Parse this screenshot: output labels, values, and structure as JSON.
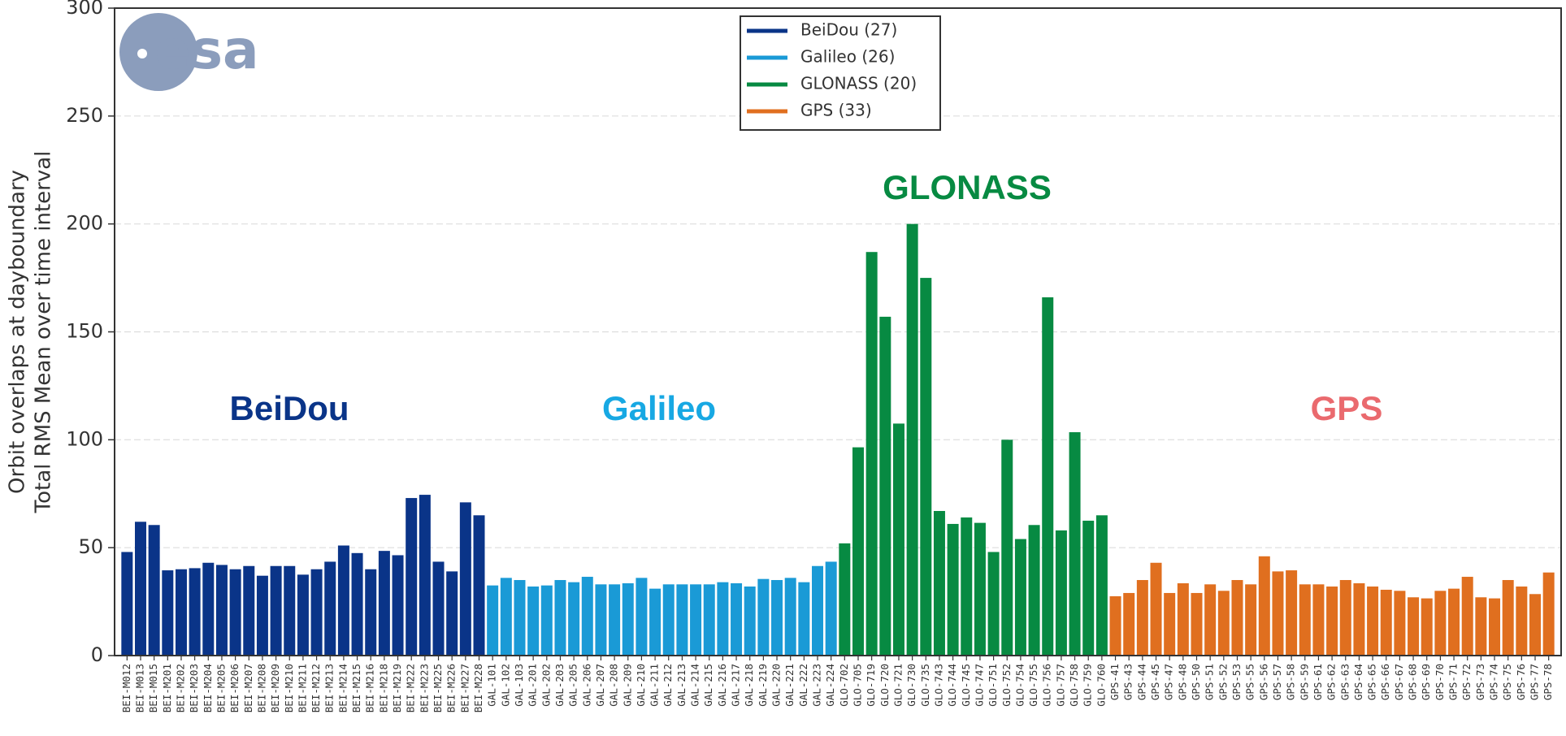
{
  "chart_data": {
    "type": "bar",
    "logo": "esa",
    "y_label": [
      "Orbit overlaps at dayboundary",
      "Total RMS Mean over time interval"
    ],
    "categories": [
      "BEI-M012",
      "BEI-M013",
      "BEI-M015",
      "BEI-M201",
      "BEI-M202",
      "BEI-M203",
      "BEI-M204",
      "BEI-M205",
      "BEI-M206",
      "BEI-M207",
      "BEI-M208",
      "BEI-M209",
      "BEI-M210",
      "BEI-M211",
      "BEI-M212",
      "BEI-M213",
      "BEI-M214",
      "BEI-M215",
      "BEI-M216",
      "BEI-M218",
      "BEI-M219",
      "BEI-M222",
      "BEI-M223",
      "BEI-M225",
      "BEI-M226",
      "BEI-M227",
      "BEI-M228",
      "GAL-101",
      "GAL-102",
      "GAL-103",
      "GAL-201",
      "GAL-202",
      "GAL-203",
      "GAL-205",
      "GAL-206",
      "GAL-207",
      "GAL-208",
      "GAL-209",
      "GAL-210",
      "GAL-211",
      "GAL-212",
      "GAL-213",
      "GAL-214",
      "GAL-215",
      "GAL-216",
      "GAL-217",
      "GAL-218",
      "GAL-219",
      "GAL-220",
      "GAL-221",
      "GAL-222",
      "GAL-223",
      "GAL-224",
      "GLO-702",
      "GLO-705",
      "GLO-719",
      "GLO-720",
      "GLO-721",
      "GLO-730",
      "GLO-735",
      "GLO-743",
      "GLO-744",
      "GLO-745",
      "GLO-747",
      "GLO-751",
      "GLO-752",
      "GLO-754",
      "GLO-755",
      "GLO-756",
      "GLO-757",
      "GLO-758",
      "GLO-759",
      "GLO-760",
      "GPS-41",
      "GPS-43",
      "GPS-44",
      "GPS-45",
      "GPS-47",
      "GPS-48",
      "GPS-50",
      "GPS-51",
      "GPS-52",
      "GPS-53",
      "GPS-55",
      "GPS-56",
      "GPS-57",
      "GPS-58",
      "GPS-59",
      "GPS-61",
      "GPS-62",
      "GPS-63",
      "GPS-64",
      "GPS-65",
      "GPS-66",
      "GPS-67",
      "GPS-68",
      "GPS-69",
      "GPS-70",
      "GPS-71",
      "GPS-72",
      "GPS-73",
      "GPS-74",
      "GPS-75",
      "GPS-76",
      "GPS-77",
      "GPS-78"
    ],
    "series": [
      {
        "name": "BeiDou (27)",
        "color": "#0a3488",
        "values": [
          48,
          62,
          60.5,
          39.5,
          40,
          40.5,
          43,
          42,
          40,
          41.5,
          37,
          41.5,
          41.5,
          37.5,
          40,
          43.5,
          51,
          47.5,
          40,
          48.5,
          46.5,
          73,
          74.5,
          43.5,
          39,
          71,
          65,
          null,
          null,
          null,
          null,
          null,
          null,
          null,
          null,
          null,
          null,
          null,
          null,
          null,
          null,
          null,
          null,
          null,
          null,
          null,
          null,
          null,
          null,
          null,
          null,
          null,
          null,
          null,
          null,
          null,
          null,
          null,
          null,
          null,
          null,
          null,
          null,
          null,
          null,
          null,
          null,
          null,
          null,
          null,
          null,
          null,
          null,
          null,
          null,
          null,
          null,
          null,
          null,
          null,
          null,
          null,
          null,
          null,
          null,
          null,
          null,
          null,
          null,
          null,
          null,
          null,
          null,
          null,
          null,
          null,
          null,
          null,
          null,
          null,
          null,
          null,
          null,
          null,
          null,
          null
        ]
      },
      {
        "name": "Galileo (26)",
        "color": "#1a9ad6",
        "values": [
          null,
          null,
          null,
          null,
          null,
          null,
          null,
          null,
          null,
          null,
          null,
          null,
          null,
          null,
          null,
          null,
          null,
          null,
          null,
          null,
          null,
          null,
          null,
          null,
          null,
          null,
          null,
          32.5,
          36,
          35,
          32,
          32.5,
          35,
          34,
          36.5,
          33,
          33,
          33.5,
          36,
          31,
          33,
          33,
          33,
          33,
          34,
          33.5,
          32,
          35.5,
          35,
          36,
          34,
          41.5,
          43.5,
          null,
          null,
          null,
          null,
          null,
          null,
          null,
          null,
          null,
          null,
          null,
          null,
          null,
          null,
          null,
          null,
          null,
          null,
          null,
          null,
          null,
          null,
          null,
          null,
          null,
          null,
          null,
          null,
          null,
          null,
          null,
          null,
          null,
          null,
          null,
          null,
          null,
          null,
          null,
          null,
          null,
          null,
          null,
          null,
          null,
          null,
          null,
          null,
          null,
          null,
          null,
          null,
          null
        ]
      },
      {
        "name": "GLONASS (20)",
        "color": "#078a42",
        "values": [
          null,
          null,
          null,
          null,
          null,
          null,
          null,
          null,
          null,
          null,
          null,
          null,
          null,
          null,
          null,
          null,
          null,
          null,
          null,
          null,
          null,
          null,
          null,
          null,
          null,
          null,
          null,
          null,
          null,
          null,
          null,
          null,
          null,
          null,
          null,
          null,
          null,
          null,
          null,
          null,
          null,
          null,
          null,
          null,
          null,
          null,
          null,
          null,
          null,
          null,
          null,
          null,
          null,
          52,
          96.5,
          187,
          157,
          107.5,
          200,
          175,
          67,
          61,
          64,
          61.5,
          48,
          100,
          54,
          60.5,
          166,
          58,
          103.5,
          62.5,
          65,
          null,
          null,
          null,
          null,
          null,
          null,
          null,
          null,
          null,
          null,
          null,
          null,
          null,
          null,
          null,
          null,
          null,
          null,
          null,
          null,
          null,
          null,
          null,
          null,
          null,
          null,
          null,
          null,
          null,
          null,
          null,
          null,
          null
        ]
      },
      {
        "name": "GPS (33)",
        "color": "#e06f1f",
        "values": [
          null,
          null,
          null,
          null,
          null,
          null,
          null,
          null,
          null,
          null,
          null,
          null,
          null,
          null,
          null,
          null,
          null,
          null,
          null,
          null,
          null,
          null,
          null,
          null,
          null,
          null,
          null,
          null,
          null,
          null,
          null,
          null,
          null,
          null,
          null,
          null,
          null,
          null,
          null,
          null,
          null,
          null,
          null,
          null,
          null,
          null,
          null,
          null,
          null,
          null,
          null,
          null,
          null,
          null,
          null,
          null,
          null,
          null,
          null,
          null,
          null,
          null,
          null,
          null,
          null,
          null,
          null,
          null,
          null,
          null,
          null,
          null,
          null,
          27.5,
          29,
          35,
          43,
          29,
          33.5,
          29,
          33,
          30,
          35,
          33,
          46,
          39,
          39.5,
          33,
          33,
          32,
          35,
          33.5,
          32,
          30.5,
          30,
          27,
          26.5,
          30,
          31,
          36.5,
          27,
          26.5,
          35,
          32,
          28.5,
          38.5
        ]
      }
    ],
    "annotations": [
      {
        "text": "BeiDou",
        "color": "#0a3488"
      },
      {
        "text": "Galileo",
        "color": "#17a8e3"
      },
      {
        "text": "GLONASS",
        "color": "#078a42"
      },
      {
        "text": "GPS",
        "color": "#ea6a6e"
      }
    ],
    "ylim": [
      0,
      300
    ],
    "yticks": [
      0,
      50,
      100,
      150,
      200,
      250,
      300
    ],
    "grid": true,
    "legend": "upper center"
  }
}
